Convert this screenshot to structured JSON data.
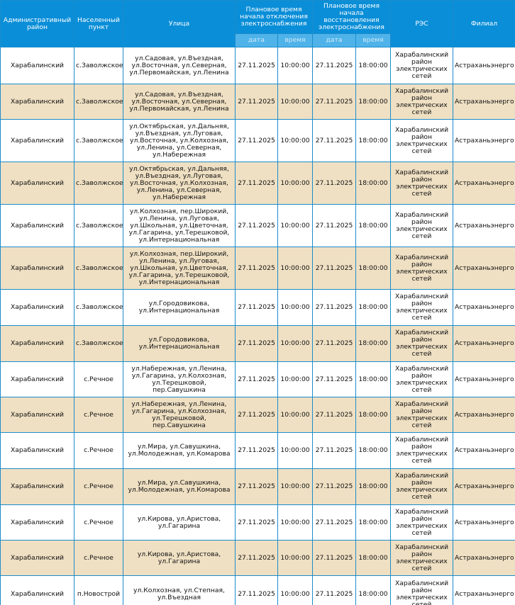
{
  "table": {
    "headers": [
      "Административный район",
      "Населенный пункт",
      "Улица",
      "Плановое время начала отключения электроснабжения",
      "Плановое время начала восстановления электроснабжения",
      "РЭС",
      "Филиал"
    ],
    "subheaders": [
      "дата",
      "время",
      "дата",
      "время"
    ],
    "rows": [
      [
        "Харабалинский",
        "с.Заволжское",
        "ул.Садовая, ул.Въездная, ул.Восточная, ул.Северная, ул.Первомайская, ул.Ленина",
        "27.11.2025",
        "10:00:00",
        "27.11.2025",
        "18:00:00",
        "Харабалинский район электрических сетей",
        "Астраханьэнерго"
      ],
      [
        "Харабалинский",
        "с.Заволжское",
        "ул.Садовая, ул.Въездная, ул.Восточная, ул.Северная, ул.Первомайская, ул.Ленина",
        "27.11.2025",
        "10:00:00",
        "27.11.2025",
        "18:00:00",
        "Харабалинский район электрических сетей",
        "Астраханьэнерго"
      ],
      [
        "Харабалинский",
        "с.Заволжское",
        "ул.Октябрьская, ул.Дальняя, ул.Въездная, ул.Луговая, ул.Восточная, ул.Колхозная, ул.Ленина, ул.Северная, ул.Набережная",
        "27.11.2025",
        "10:00:00",
        "27.11.2025",
        "18:00:00",
        "Харабалинский район электрических сетей",
        "Астраханьэнерго"
      ],
      [
        "Харабалинский",
        "с.Заволжское",
        "ул.Октябрьская, ул.Дальняя, ул.Въездная, ул.Луговая, ул.Восточная, ул.Колхозная, ул.Ленина, ул.Северная, ул.Набережная",
        "27.11.2025",
        "10:00:00",
        "27.11.2025",
        "18:00:00",
        "Харабалинский район электрических сетей",
        "Астраханьэнерго"
      ],
      [
        "Харабалинский",
        "с.Заволжское",
        "ул.Колхозная, пер.Широкий, ул.Ленина, ул.Луговая, ул.Школьная, ул.Цветочная, ул.Гагарина, ул.Терешковой, ул.Интернациональная",
        "27.11.2025",
        "10:00:00",
        "27.11.2025",
        "18:00:00",
        "Харабалинский район электрических сетей",
        "Астраханьэнерго"
      ],
      [
        "Харабалинский",
        "с.Заволжское",
        "ул.Колхозная, пер.Широкий, ул.Ленина, ул.Луговая, ул.Школьная, ул.Цветочная, ул.Гагарина, ул.Терешковой, ул.Интернациональная",
        "27.11.2025",
        "10:00:00",
        "27.11.2025",
        "18:00:00",
        "Харабалинский район электрических сетей",
        "Астраханьэнерго"
      ],
      [
        "Харабалинский",
        "с.Заволжское",
        "ул.Городовикова, ул.Интернациональная",
        "27.11.2025",
        "10:00:00",
        "27.11.2025",
        "18:00:00",
        "Харабалинский район электрических сетей",
        "Астраханьэнерго"
      ],
      [
        "Харабалинский",
        "с.Заволжское",
        "ул.Городовикова, ул.Интернациональная",
        "27.11.2025",
        "10:00:00",
        "27.11.2025",
        "18:00:00",
        "Харабалинский район электрических сетей",
        "Астраханьэнерго"
      ],
      [
        "Харабалинский",
        "с.Речное",
        "ул.Набережная, ул.Ленина, ул.Гагарина, ул.Колхозная, ул.Терешковой, пер.Савушкина",
        "27.11.2025",
        "10:00:00",
        "27.11.2025",
        "18:00:00",
        "Харабалинский район электрических сетей",
        "Астраханьэнерго"
      ],
      [
        "Харабалинский",
        "с.Речное",
        "ул.Набережная, ул.Ленина, ул.Гагарина, ул.Колхозная, ул.Терешковой, пер.Савушкина",
        "27.11.2025",
        "10:00:00",
        "27.11.2025",
        "18:00:00",
        "Харабалинский район электрических сетей",
        "Астраханьэнерго"
      ],
      [
        "Харабалинский",
        "с.Речное",
        "ул.Мира, ул.Савушкина, ул.Молодежная, ул.Комарова",
        "27.11.2025",
        "10:00:00",
        "27.11.2025",
        "18:00:00",
        "Харабалинский район электрических сетей",
        "Астраханьэнерго"
      ],
      [
        "Харабалинский",
        "с.Речное",
        "ул.Мира, ул.Савушкина, ул.Молодежная, ул.Комарова",
        "27.11.2025",
        "10:00:00",
        "27.11.2025",
        "18:00:00",
        "Харабалинский район электрических сетей",
        "Астраханьэнерго"
      ],
      [
        "Харабалинский",
        "с.Речное",
        "ул.Кирова, ул.Аристова, ул.Гагарина",
        "27.11.2025",
        "10:00:00",
        "27.11.2025",
        "18:00:00",
        "Харабалинский район электрических сетей",
        "Астраханьэнерго"
      ],
      [
        "Харабалинский",
        "с.Речное",
        "ул.Кирова, ул.Аристова, ул.Гагарина",
        "27.11.2025",
        "10:00:00",
        "27.11.2025",
        "18:00:00",
        "Харабалинский район электрических сетей",
        "Астраханьэнерго"
      ],
      [
        "Харабалинский",
        "п.Новострой",
        "ул.Колхозная, ул.Степная, ул.Въездная",
        "27.11.2025",
        "10:00:00",
        "27.11.2025",
        "18:00:00",
        "Харабалинский район электрических сетей",
        "Астраханьэнерго"
      ]
    ]
  }
}
